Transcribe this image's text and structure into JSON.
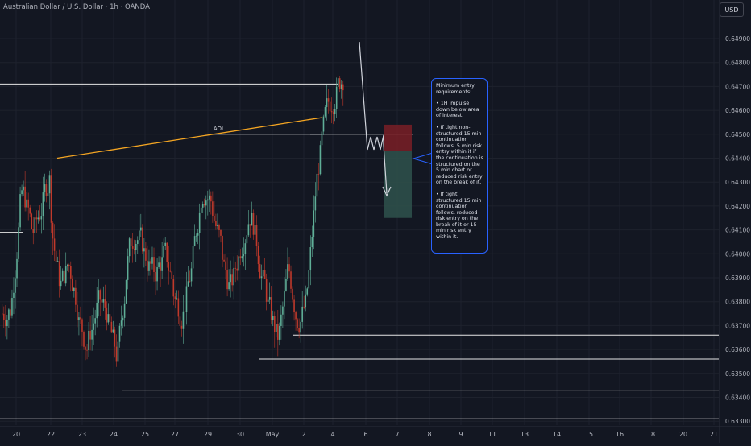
{
  "header": {
    "title": "Australian Dollar / U.S. Dollar · 1h · OANDA",
    "currency_label": "USD"
  },
  "colors": {
    "background": "#131722",
    "grid": "#1e222d",
    "bull_candle": "#5fae97",
    "bear_candle": "#c0392b",
    "trendline": "#f5a623",
    "level_line": "#e6e6e6",
    "note_border": "#2962ff",
    "stop_zone": "#7a1f26",
    "target_zone": "#2e4f4a",
    "arrow": "#d1d4dc"
  },
  "annotations": {
    "aoi_label": "AOI",
    "note_paragraphs": [
      "Minimum entry requirements:",
      "• 1H impulse down below area of interest.",
      "• If tight non-structured 15 min continuation follows, 5 min risk entry within it if the continuation is structured on the 5 min chart or reduced risk entry on the break of it.",
      "• If tight structured 15 min continuation follows, reduced risk entry on the break of it or 15 min risk entry within it."
    ]
  },
  "chart_data": {
    "type": "candlestick",
    "symbol": "Australian Dollar / U.S. Dollar",
    "timeframe": "1h",
    "source": "OANDA",
    "y_axis": {
      "ticks": [
        "0.64900",
        "0.64800",
        "0.64700",
        "0.64600",
        "0.64500",
        "0.64400",
        "0.64300",
        "0.64200",
        "0.64100",
        "0.64000",
        "0.63900",
        "0.63800",
        "0.63700",
        "0.63600",
        "0.63500",
        "0.63400",
        "0.63300"
      ],
      "range": [
        0.633,
        0.649
      ]
    },
    "x_axis": {
      "ticks": [
        "20",
        "22",
        "23",
        "24",
        "25",
        "27",
        "29",
        "30",
        "May",
        "2",
        "4",
        "6",
        "7",
        "8",
        "9",
        "11",
        "13",
        "14",
        "15",
        "16",
        "18",
        "20",
        "21"
      ]
    },
    "key_levels": [
      0.6471,
      0.645,
      0.6409,
      0.6366,
      0.6356,
      0.6343,
      0.6331
    ],
    "aoi_trendline": {
      "from_label": "22",
      "from_price": 0.644,
      "to_label": "4",
      "to_price": 0.6457
    },
    "trade_zone": {
      "entry": 0.6443,
      "stop": 0.6454,
      "target": 0.6415
    },
    "price_path": [
      [
        0.6375,
        0.6378
      ],
      [
        0.6385,
        0.6432
      ],
      [
        0.6428,
        0.641
      ],
      [
        0.6405,
        0.642
      ],
      [
        0.642,
        0.6435
      ],
      [
        0.641,
        0.6385
      ],
      [
        0.6385,
        0.6398
      ],
      [
        0.6395,
        0.6375
      ],
      [
        0.637,
        0.636
      ],
      [
        0.6365,
        0.638
      ],
      [
        0.638,
        0.6375
      ],
      [
        0.637,
        0.6355
      ],
      [
        0.6355,
        0.6395
      ],
      [
        0.64,
        0.6412
      ],
      [
        0.641,
        0.6398
      ],
      [
        0.6398,
        0.639
      ],
      [
        0.6392,
        0.64
      ],
      [
        0.64,
        0.6385
      ],
      [
        0.638,
        0.6375
      ],
      [
        0.6378,
        0.6398
      ],
      [
        0.64,
        0.6432
      ],
      [
        0.643,
        0.642
      ],
      [
        0.6418,
        0.64
      ],
      [
        0.6395,
        0.6385
      ],
      [
        0.6385,
        0.6405
      ],
      [
        0.6405,
        0.642
      ],
      [
        0.642,
        0.6395
      ],
      [
        0.6395,
        0.6375
      ],
      [
        0.6375,
        0.6362
      ],
      [
        0.6365,
        0.6395
      ],
      [
        0.6395,
        0.637
      ],
      [
        0.6372,
        0.638
      ],
      [
        0.6385,
        0.6435
      ],
      [
        0.6435,
        0.646
      ],
      [
        0.646,
        0.647
      ],
      [
        0.6468,
        0.6478
      ]
    ]
  }
}
